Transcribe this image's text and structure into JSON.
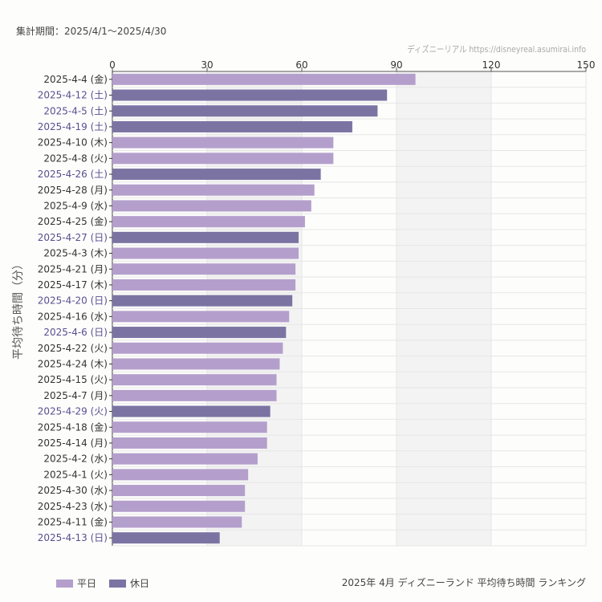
{
  "header": {
    "period": "集計期間：2025/4/1〜2025/4/30",
    "credit": "ディズニーリアル https://disneyreal.asumirai.info"
  },
  "footer": {
    "title": "2025年 4月 ディズニーランド 平均待ち時間 ランキング"
  },
  "colors": {
    "weekday": "#b49fcc",
    "holiday": "#7b74a3",
    "holiday_label": "#5a4f8f",
    "band": "#f3f3f3"
  },
  "chart_data": {
    "type": "bar",
    "orientation": "horizontal",
    "ylabel": "平均待ち時間（分）",
    "xlim": [
      0,
      150
    ],
    "xticks": [
      0,
      30,
      60,
      90,
      120,
      150
    ],
    "legend": [
      {
        "name": "平日",
        "key": "weekday"
      },
      {
        "name": "休日",
        "key": "holiday"
      }
    ],
    "legend_position": "bottom-left",
    "categories": [
      "2025-4-4 (金)",
      "2025-4-12 (土)",
      "2025-4-5 (土)",
      "2025-4-19 (土)",
      "2025-4-10 (木)",
      "2025-4-8 (火)",
      "2025-4-26 (土)",
      "2025-4-28 (月)",
      "2025-4-9 (水)",
      "2025-4-25 (金)",
      "2025-4-27 (日)",
      "2025-4-3 (木)",
      "2025-4-21 (月)",
      "2025-4-17 (木)",
      "2025-4-20 (日)",
      "2025-4-16 (水)",
      "2025-4-6 (日)",
      "2025-4-22 (火)",
      "2025-4-24 (木)",
      "2025-4-15 (火)",
      "2025-4-7 (月)",
      "2025-4-29 (火)",
      "2025-4-18 (金)",
      "2025-4-14 (月)",
      "2025-4-2 (水)",
      "2025-4-1 (火)",
      "2025-4-30 (水)",
      "2025-4-23 (水)",
      "2025-4-11 (金)",
      "2025-4-13 (日)"
    ],
    "values": [
      96,
      87,
      84,
      76,
      70,
      70,
      66,
      64,
      63,
      61,
      59,
      59,
      58,
      58,
      57,
      56,
      55,
      54,
      53,
      52,
      52,
      50,
      49,
      49,
      46,
      43,
      42,
      42,
      41,
      34
    ],
    "holiday": [
      false,
      true,
      true,
      true,
      false,
      false,
      true,
      false,
      false,
      false,
      true,
      false,
      false,
      false,
      true,
      false,
      true,
      false,
      false,
      false,
      false,
      true,
      false,
      false,
      false,
      false,
      false,
      false,
      false,
      true
    ]
  }
}
